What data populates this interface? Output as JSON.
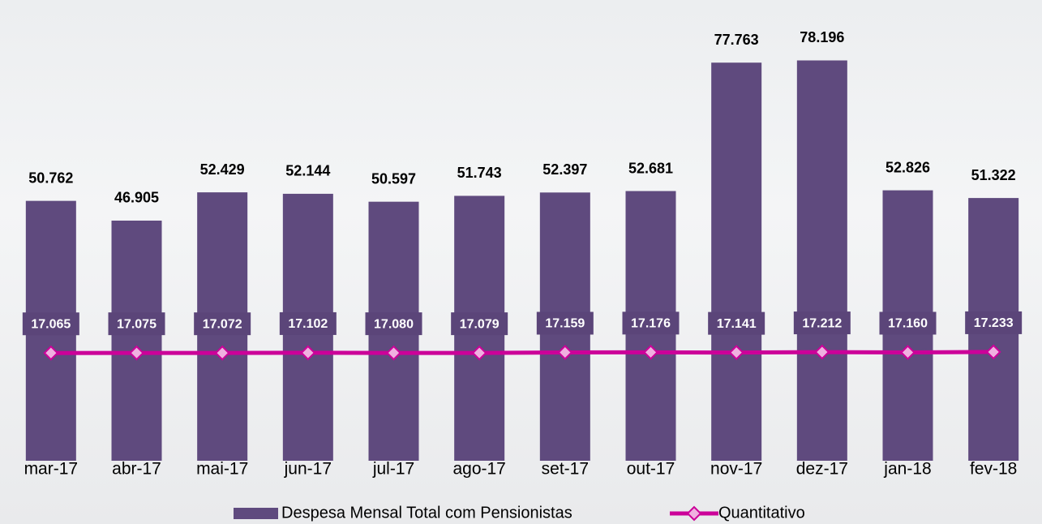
{
  "chart_data": {
    "type": "combo",
    "categories": [
      "mar-17",
      "abr-17",
      "mai-17",
      "jun-17",
      "jul-17",
      "ago-17",
      "set-17",
      "out-17",
      "nov-17",
      "dez-17",
      "jan-18",
      "fev-18"
    ],
    "series": [
      {
        "name": "Despesa Mensal Total com Pensionistas",
        "type": "bar",
        "color": "#5f4a7e",
        "values": [
          50762,
          46905,
          52429,
          52144,
          50597,
          51743,
          52397,
          52681,
          77763,
          78196,
          52826,
          51322
        ],
        "value_labels": [
          "50.762",
          "46.905",
          "52.429",
          "52.144",
          "50.597",
          "51.743",
          "52.397",
          "52.681",
          "77.763",
          "78.196",
          "52.826",
          "51.322"
        ]
      },
      {
        "name": "Quantitativo",
        "type": "line",
        "axis": "y2",
        "color": "#cc0099",
        "values": [
          17065,
          17075,
          17072,
          17102,
          17080,
          17079,
          17159,
          17176,
          17141,
          17212,
          17160,
          17233
        ],
        "value_labels": [
          "17.065",
          "17.075",
          "17.072",
          "17.102",
          "17.080",
          "17.079",
          "17.159",
          "17.176",
          "17.141",
          "17.212",
          "17.160",
          "17.233"
        ]
      }
    ],
    "ylim": [
      0,
      90000
    ],
    "y2lim": [
      0,
      73000
    ],
    "legend": "bottom"
  }
}
